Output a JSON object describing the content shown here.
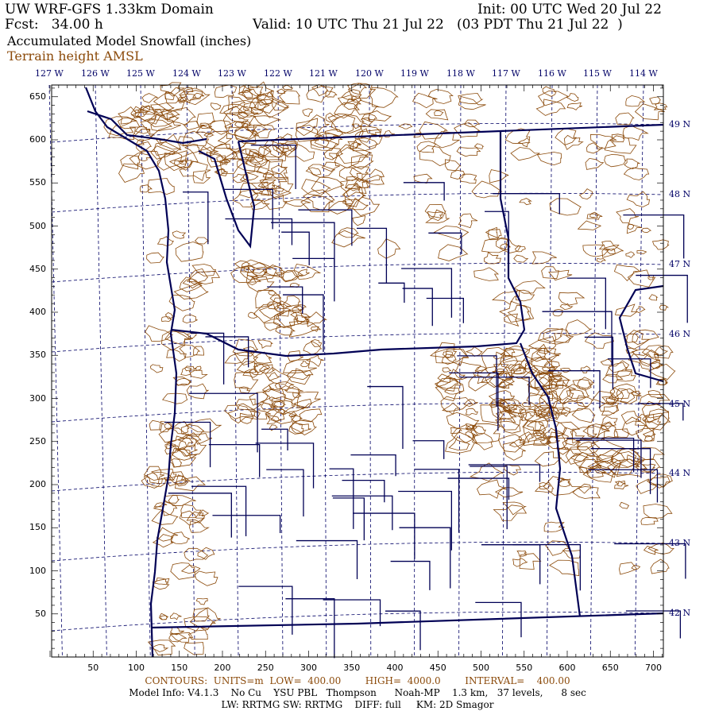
{
  "header": {
    "title": "UW WRF-GFS 1.33km Domain",
    "init": "Init: 00 UTC Wed 20 Jul 22",
    "fcst": "Fcst:   34.00 h",
    "valid": "Valid: 10 UTC Thu 21 Jul 22   (03 PDT Thu 21 Jul 22  )",
    "field": "Accumulated Model Snowfall (inches)",
    "overlay": "Terrain height AMSL"
  },
  "map": {
    "longitude_labels": [
      "127 W",
      "126 W",
      "125 W",
      "124 W",
      "123 W",
      "122 W",
      "121 W",
      "120 W",
      "119 W",
      "118 W",
      "117 W",
      "116 W",
      "115 W",
      "114 W"
    ],
    "latitude_labels": [
      "49 N",
      "48 N",
      "47 N",
      "46 N",
      "45 N",
      "44 N",
      "43 N",
      "42 N"
    ],
    "y_grid_labels": [
      "650",
      "600",
      "550",
      "500",
      "450",
      "400",
      "350",
      "300",
      "250",
      "200",
      "150",
      "100",
      "50"
    ],
    "x_grid_labels": [
      "50",
      "100",
      "150",
      "200",
      "250",
      "300",
      "350",
      "400",
      "450",
      "500",
      "550",
      "600",
      "650",
      "700"
    ],
    "colors": {
      "borders": "#000055",
      "terrain_contours": "#8b4a0a",
      "grid": "#000066"
    }
  },
  "footer": {
    "contours": "CONTOURS:  UNITS=m  LOW=  400.00        HIGH=  4000.0        INTERVAL=    400.00",
    "model_info": "Model Info: V4.1.3    No Cu    YSU PBL   Thompson      Noah-MP    1.3 km,   37 levels,      8 sec",
    "physics": "LW: RRTMG SW: RRTMG    DIFF: full     KM: 2D Smagor"
  }
}
